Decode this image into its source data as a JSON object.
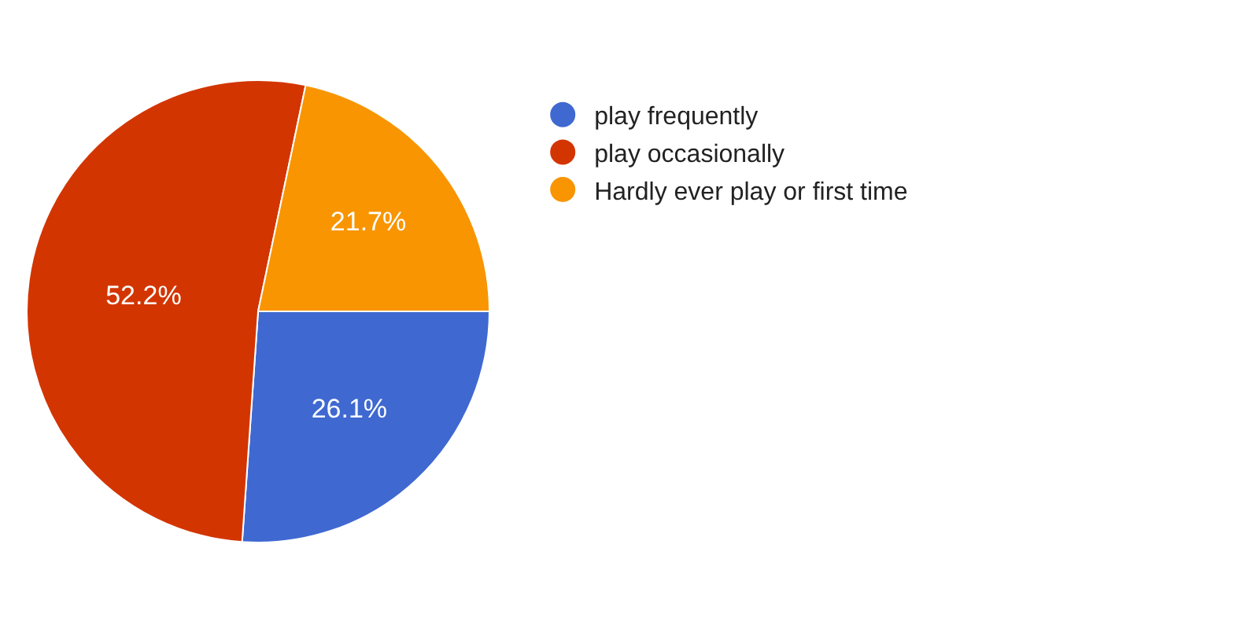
{
  "chart_data": {
    "type": "pie",
    "categories": [
      "play frequently",
      "play occasionally",
      "Hardly ever play or first time"
    ],
    "values": [
      26.1,
      52.2,
      21.7
    ],
    "colors": [
      "#3f69d1",
      "#d33500",
      "#f89500"
    ],
    "value_labels": [
      "26.1%",
      "52.2%",
      "21.7%"
    ],
    "legend": "right"
  }
}
